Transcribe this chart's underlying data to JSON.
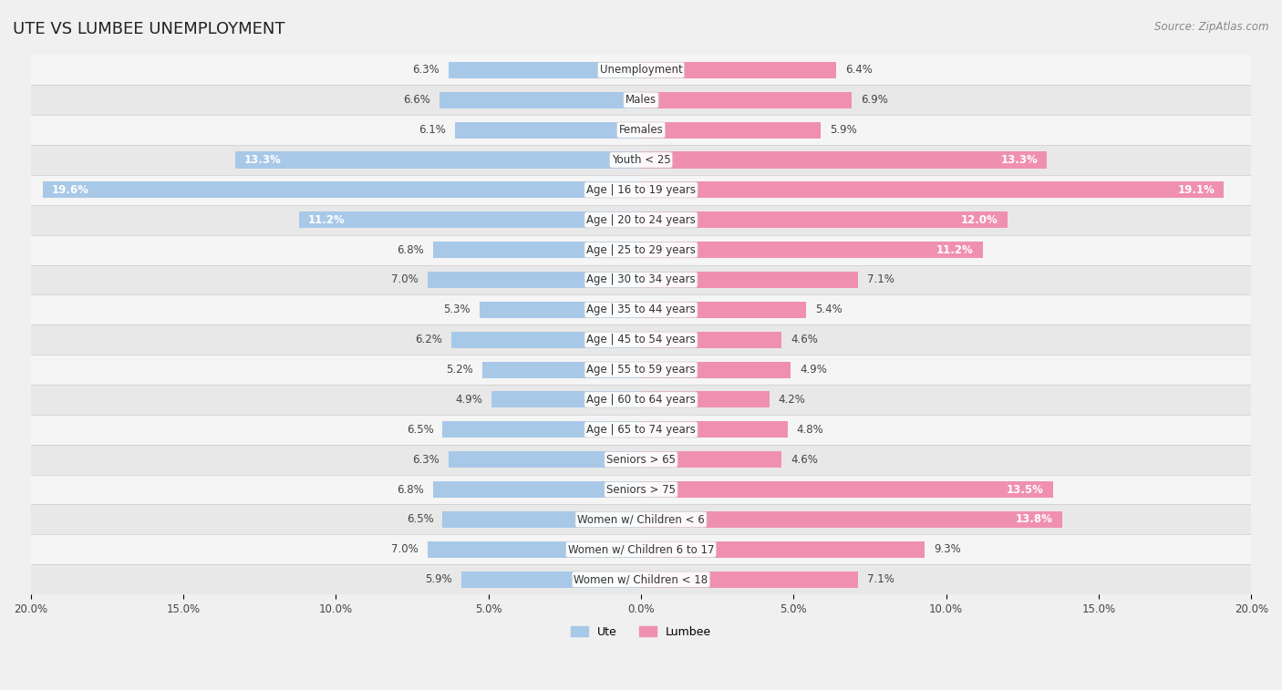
{
  "title": "UTE VS LUMBEE UNEMPLOYMENT",
  "source": "Source: ZipAtlas.com",
  "categories": [
    "Unemployment",
    "Males",
    "Females",
    "Youth < 25",
    "Age | 16 to 19 years",
    "Age | 20 to 24 years",
    "Age | 25 to 29 years",
    "Age | 30 to 34 years",
    "Age | 35 to 44 years",
    "Age | 45 to 54 years",
    "Age | 55 to 59 years",
    "Age | 60 to 64 years",
    "Age | 65 to 74 years",
    "Seniors > 65",
    "Seniors > 75",
    "Women w/ Children < 6",
    "Women w/ Children 6 to 17",
    "Women w/ Children < 18"
  ],
  "ute_values": [
    6.3,
    6.6,
    6.1,
    13.3,
    19.6,
    11.2,
    6.8,
    7.0,
    5.3,
    6.2,
    5.2,
    4.9,
    6.5,
    6.3,
    6.8,
    6.5,
    7.0,
    5.9
  ],
  "lumbee_values": [
    6.4,
    6.9,
    5.9,
    13.3,
    19.1,
    12.0,
    11.2,
    7.1,
    5.4,
    4.6,
    4.9,
    4.2,
    4.8,
    4.6,
    13.5,
    13.8,
    9.3,
    7.1
  ],
  "ute_color": "#a8c8e8",
  "lumbee_color": "#f090b0",
  "bg_color": "#f0f0f0",
  "row_color_odd": "#f5f5f5",
  "row_color_even": "#e8e8e8",
  "xlim": 20.0,
  "bar_height": 0.55,
  "label_threshold": 10.0,
  "title_fontsize": 13,
  "cat_fontsize": 8.5,
  "val_fontsize": 8.5,
  "axis_fontsize": 8.5,
  "source_fontsize": 8.5,
  "legend_fontsize": 9
}
